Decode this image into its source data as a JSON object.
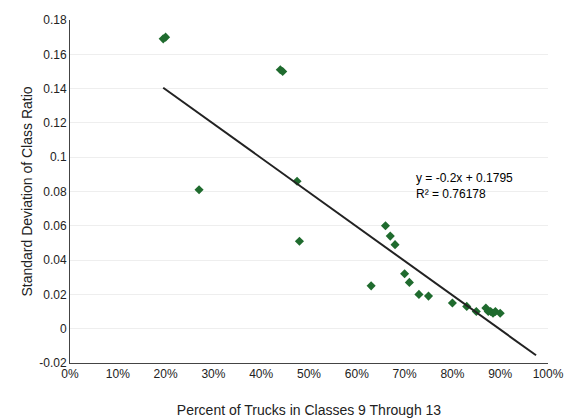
{
  "chart_data": {
    "type": "scatter",
    "series": [
      {
        "type": "scatter",
        "marker": "diamond",
        "color": "#1f6b2e",
        "x": [
          0.2,
          0.195,
          0.27,
          0.44,
          0.445,
          0.475,
          0.48,
          0.63,
          0.66,
          0.67,
          0.68,
          0.7,
          0.71,
          0.73,
          0.75,
          0.8,
          0.83,
          0.85,
          0.87,
          0.875,
          0.88,
          0.885,
          0.89,
          0.9
        ],
        "values": [
          0.17,
          0.169,
          0.081,
          0.151,
          0.15,
          0.086,
          0.051,
          0.025,
          0.06,
          0.054,
          0.049,
          0.032,
          0.027,
          0.02,
          0.019,
          0.015,
          0.013,
          0.01,
          0.012,
          0.01,
          0.01,
          0.009,
          0.01,
          0.009
        ]
      },
      {
        "type": "line",
        "color": "#222222",
        "x": [
          0.195,
          0.975
        ],
        "values": [
          0.1405,
          -0.0155
        ]
      }
    ],
    "annotation": {
      "lines": [
        "y = -0.2x + 0.1795",
        "R² = 0.76178"
      ],
      "x": 0.72,
      "y": 0.093
    },
    "xlabel": "Percent of Trucks in Classes 9 Through 13",
    "ylabel": "Standard Deviation of Class Ratio",
    "xlim": [
      0.0,
      1.0
    ],
    "ylim": [
      -0.02,
      0.18
    ],
    "xticks": [
      {
        "value": 0.0,
        "label": "0%"
      },
      {
        "value": 0.1,
        "label": "10%"
      },
      {
        "value": 0.2,
        "label": "20%"
      },
      {
        "value": 0.3,
        "label": "30%"
      },
      {
        "value": 0.4,
        "label": "40%"
      },
      {
        "value": 0.5,
        "label": "50%"
      },
      {
        "value": 0.6,
        "label": "60%"
      },
      {
        "value": 0.7,
        "label": "70%"
      },
      {
        "value": 0.8,
        "label": "80%"
      },
      {
        "value": 0.9,
        "label": "90%"
      },
      {
        "value": 1.0,
        "label": "100%"
      }
    ],
    "yticks": [
      -0.02,
      0,
      0.02,
      0.04,
      0.06,
      0.08,
      0.1,
      0.12,
      0.14,
      0.16,
      0.18
    ],
    "grid": "y"
  }
}
